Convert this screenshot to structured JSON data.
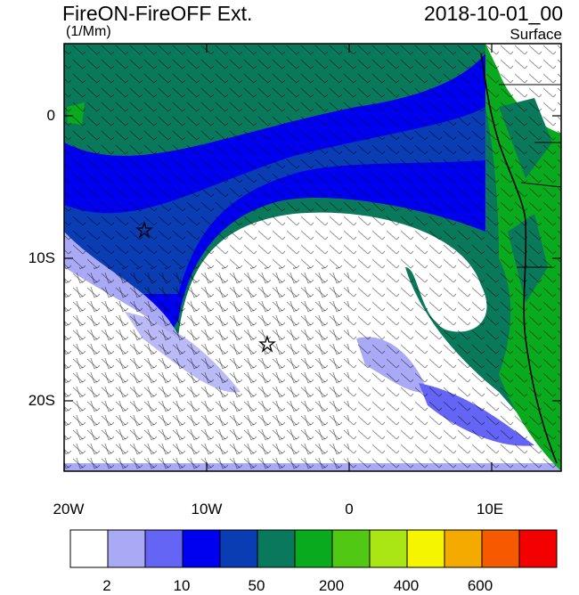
{
  "header": {
    "title": "FireON-FireOFF Ext.",
    "units": "(1/Mm)",
    "datetime": "2018-10-01_00",
    "level": "Surface"
  },
  "map": {
    "lat_ticks": [
      "0",
      "10S",
      "20S"
    ],
    "lon_ticks": [
      "20W",
      "10W",
      "0",
      "10E"
    ],
    "extent": {
      "lon_min": -20,
      "lon_max": 15,
      "lat_min": -24,
      "lat_max": 5
    },
    "markers": [
      {
        "name": "star-marker-west",
        "lon": -14.3,
        "lat": -8.0
      },
      {
        "name": "star-marker-center",
        "lon": -5.7,
        "lat": -16.0
      }
    ]
  },
  "colorbar": {
    "colors": [
      "#ffffff",
      "#a9a9f5",
      "#6464f5",
      "#0000f0",
      "#0a3cb4",
      "#0a785a",
      "#0aaa1e",
      "#50c814",
      "#aae614",
      "#f5f500",
      "#f5aa00",
      "#f55a00",
      "#f50000"
    ],
    "labels": [
      "2",
      "10",
      "50",
      "200",
      "400",
      "600"
    ]
  }
}
